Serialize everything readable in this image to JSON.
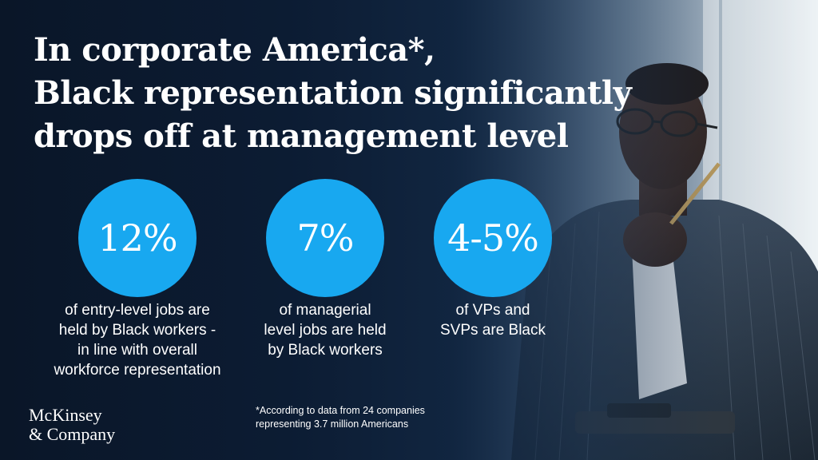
{
  "headline": {
    "line1": "In corporate America*,",
    "line2": "Black representation significantly",
    "line3": "drops off at management level"
  },
  "stats": [
    {
      "value": "12%",
      "caption": [
        "of entry-level jobs are",
        "held by Black workers -",
        "in line with overall",
        "workforce representation"
      ]
    },
    {
      "value": "7%",
      "caption": [
        "of managerial",
        "level jobs are held",
        "by Black workers"
      ]
    },
    {
      "value": "4-5%",
      "caption": [
        "of VPs and",
        "SVPs are Black"
      ]
    }
  ],
  "logo": {
    "line1": "McKinsey",
    "line2": "& Company"
  },
  "footnote": {
    "line1": "*According to data from 24 companies",
    "line2": "representing 3.7 million Americans"
  },
  "colors": {
    "background": "#0b1a2e",
    "accent": "#18a8f0",
    "text": "#ffffff"
  }
}
